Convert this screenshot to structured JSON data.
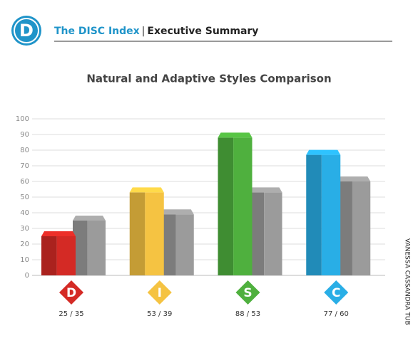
{
  "header": {
    "logo": "D",
    "brand": "The DISC Index",
    "separator": "|",
    "section": "Executive Summary"
  },
  "side_text": "VANESSA CASSANDRA TUB",
  "chart_data": {
    "type": "bar",
    "title": "Natural and Adaptive Styles Comparison",
    "categories": [
      "D",
      "I",
      "S",
      "C"
    ],
    "category_colors": [
      "#d42a25",
      "#f5c342",
      "#4fb03e",
      "#29aee6"
    ],
    "series": [
      {
        "colors": [
          "#d42a25",
          "#f5c342",
          "#4fb03e",
          "#29aee6"
        ],
        "values": [
          25,
          53,
          88,
          77
        ]
      },
      {
        "color": "#9b9b9b",
        "values": [
          35,
          39,
          53,
          60
        ]
      }
    ],
    "value_labels": [
      "25 / 35",
      "53 / 39",
      "88 / 53",
      "77 / 60"
    ],
    "ylim": [
      0,
      100
    ],
    "yticks": [
      0,
      10,
      20,
      30,
      40,
      50,
      60,
      70,
      80,
      90,
      100
    ],
    "grid": true
  }
}
